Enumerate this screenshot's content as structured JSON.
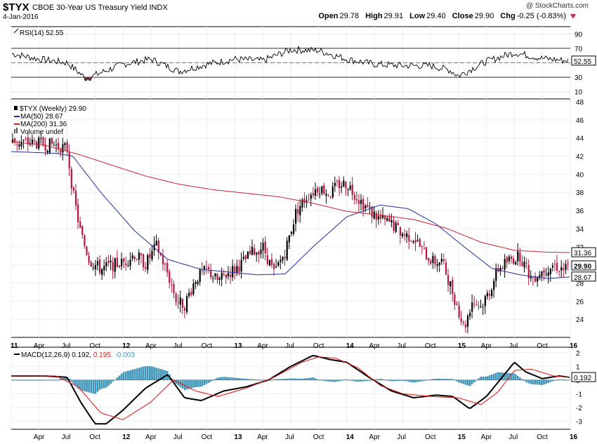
{
  "header": {
    "symbol": "$TYX",
    "description": "CBOE 30-Year US Treasury Yield INDX",
    "date": "4-Jan-2016",
    "brand": "@ StockCharts.com",
    "quote": {
      "open_label": "Open",
      "open": "29.78",
      "high_label": "High",
      "high": "29.91",
      "low_label": "Low",
      "low": "29.40",
      "close_label": "Close",
      "close": "29.90",
      "chg_label": "Chg",
      "chg": "-0.25 (-0.83%)"
    }
  },
  "colors": {
    "price_up": "#000000",
    "price_down": "#b5173e",
    "ma50": "#1f2f9a",
    "ma200": "#cc2233",
    "macd_line": "#000000",
    "signal_line": "#e02020",
    "histogram": "#3aa0c8",
    "rsi_fill_over": "#7a3c3c",
    "rsi_fill_under": "#8a3b3b"
  },
  "chart_data": [
    {
      "type": "line",
      "panel": "rsi",
      "label_text": "RSI(14) 52.55",
      "value_tag": "52.55",
      "ylim": [
        0,
        100
      ],
      "y_ticks": [
        "90",
        "70",
        "50",
        "30",
        "10"
      ],
      "reference_lines": [
        70,
        50,
        30
      ],
      "x": [
        2011.0,
        2011.25,
        2011.5,
        2011.67,
        2011.83,
        2012.0,
        2012.25,
        2012.5,
        2012.75,
        2013.0,
        2013.25,
        2013.5,
        2013.75,
        2014.0,
        2014.25,
        2014.5,
        2014.75,
        2014.92,
        2015.0,
        2015.25,
        2015.5,
        2015.75,
        2016.0
      ],
      "values": [
        63,
        55,
        50,
        28,
        38,
        48,
        55,
        38,
        48,
        55,
        53,
        68,
        67,
        55,
        48,
        46,
        46,
        40,
        32,
        52,
        64,
        56,
        52.55
      ]
    },
    {
      "type": "ohlc",
      "panel": "price",
      "title": "$TYX (Weekly) 29.90",
      "legend": [
        "MA(50) 28.67",
        "MA(200) 31.36",
        "Volume undef"
      ],
      "ylim": [
        22,
        48
      ],
      "y_ticks": [
        "48",
        "46",
        "44",
        "42",
        "40",
        "38",
        "36",
        "34",
        "32",
        "30",
        "28",
        "26",
        "24"
      ],
      "value_tags": [
        "31.36",
        "29.90",
        "28.67"
      ],
      "x_ticks": [
        "11",
        "Apr",
        "Jul",
        "Oct",
        "12",
        "Apr",
        "Jul",
        "Oct",
        "13",
        "Apr",
        "Jul",
        "Oct",
        "14",
        "Apr",
        "Jul",
        "Oct",
        "15",
        "Apr",
        "Jul",
        "Oct",
        "16"
      ],
      "x_range": [
        2011.0,
        2016.0
      ],
      "close_path": {
        "x": [
          2011.0,
          2011.2,
          2011.4,
          2011.5,
          2011.55,
          2011.62,
          2011.7,
          2011.8,
          2011.9,
          2012.0,
          2012.1,
          2012.2,
          2012.3,
          2012.4,
          2012.48,
          2012.55,
          2012.65,
          2012.75,
          2012.85,
          2012.95,
          2013.05,
          2013.15,
          2013.25,
          2013.35,
          2013.45,
          2013.55,
          2013.65,
          2013.75,
          2013.85,
          2013.92,
          2014.0,
          2014.1,
          2014.2,
          2014.3,
          2014.4,
          2014.5,
          2014.6,
          2014.7,
          2014.78,
          2014.85,
          2014.92,
          2015.0,
          2015.05,
          2015.12,
          2015.2,
          2015.28,
          2015.35,
          2015.45,
          2015.55,
          2015.65,
          2015.75,
          2015.85,
          2015.95,
          2016.0
        ],
        "values": [
          43.6,
          43.4,
          43.2,
          42.8,
          38.0,
          33.5,
          30.5,
          29.5,
          30.0,
          30.2,
          31.2,
          30.1,
          32.1,
          29.0,
          26.0,
          25.6,
          28.5,
          29.4,
          28.2,
          29.2,
          30.0,
          31.3,
          32.0,
          29.0,
          31.5,
          36.0,
          37.6,
          38.6,
          37.8,
          38.8,
          39.0,
          37.4,
          36.0,
          35.0,
          34.5,
          33.4,
          33.0,
          31.2,
          30.3,
          30.4,
          28.0,
          25.0,
          23.0,
          26.0,
          25.4,
          27.2,
          29.5,
          30.5,
          31.0,
          28.5,
          29.4,
          30.0,
          29.5,
          29.9
        ]
      },
      "series": [
        {
          "name": "MA(50)",
          "x": [
            2011.0,
            2011.4,
            2011.55,
            2011.8,
            2012.1,
            2012.4,
            2012.7,
            2012.95,
            2013.2,
            2013.45,
            2013.7,
            2014.0,
            2014.3,
            2014.55,
            2014.8,
            2015.05,
            2015.3,
            2015.55,
            2015.8,
            2016.0
          ],
          "values": [
            42.5,
            42.3,
            42.0,
            38.0,
            33.8,
            30.6,
            29.5,
            29.2,
            28.9,
            29.0,
            32.0,
            35.3,
            36.6,
            36.2,
            34.5,
            32.0,
            29.6,
            28.9,
            28.5,
            28.67
          ]
        },
        {
          "name": "MA(200)",
          "x": [
            2011.0,
            2011.3,
            2011.6,
            2011.9,
            2012.2,
            2012.5,
            2012.8,
            2013.1,
            2013.4,
            2013.7,
            2014.0,
            2014.3,
            2014.6,
            2014.9,
            2015.2,
            2015.5,
            2015.8,
            2016.0
          ],
          "values": [
            43.6,
            43.2,
            42.2,
            41.0,
            39.8,
            38.9,
            38.3,
            37.9,
            37.5,
            36.8,
            35.9,
            35.5,
            35.0,
            34.0,
            32.5,
            31.6,
            31.4,
            31.36
          ]
        }
      ]
    },
    {
      "type": "line",
      "panel": "macd",
      "label_parts": [
        "MACD(12,26,9)",
        "0.192",
        "0.195",
        "-0.003"
      ],
      "value_tag": "0.192",
      "ylim": [
        -3.6,
        2.4
      ],
      "y_ticks": [
        "2",
        "1",
        "0",
        "-1",
        "-2",
        "-3"
      ],
      "x_ticks": [
        "Apr",
        "Jul",
        "Oct",
        "12",
        "Apr",
        "Jul",
        "Oct",
        "13",
        "Apr",
        "Jul",
        "Oct",
        "14",
        "Apr",
        "Jul",
        "Oct",
        "15",
        "Apr",
        "Jul",
        "Oct",
        "16"
      ],
      "series": [
        {
          "name": "MACD(12,26,9)",
          "x": [
            2011.0,
            2011.3,
            2011.5,
            2011.62,
            2011.75,
            2011.85,
            2012.0,
            2012.2,
            2012.4,
            2012.55,
            2012.7,
            2012.9,
            2013.1,
            2013.3,
            2013.5,
            2013.7,
            2013.85,
            2014.0,
            2014.2,
            2014.4,
            2014.6,
            2014.8,
            2014.95,
            2015.1,
            2015.25,
            2015.4,
            2015.5,
            2015.6,
            2015.75,
            2015.9,
            2016.0
          ],
          "values": [
            0.3,
            0.3,
            0.2,
            -1.6,
            -3.2,
            -3.2,
            -2.2,
            -0.6,
            0.4,
            -1.3,
            -1.5,
            -0.8,
            -0.5,
            0.0,
            1.0,
            1.8,
            1.5,
            1.3,
            0.2,
            -0.8,
            -1.3,
            -1.1,
            -1.2,
            -2.1,
            -1.2,
            0.3,
            1.3,
            0.6,
            0.1,
            0.3,
            0.19
          ]
        },
        {
          "name": "signal",
          "x": [
            2011.0,
            2011.4,
            2011.6,
            2011.8,
            2012.0,
            2012.25,
            2012.45,
            2012.65,
            2012.85,
            2013.1,
            2013.35,
            2013.6,
            2013.75,
            2013.9,
            2014.1,
            2014.3,
            2014.5,
            2014.75,
            2015.0,
            2015.2,
            2015.35,
            2015.5,
            2015.65,
            2015.85,
            2016.0
          ],
          "values": [
            0.3,
            0.3,
            -0.5,
            -2.4,
            -2.9,
            -1.6,
            0.0,
            -0.8,
            -1.2,
            -0.6,
            0.2,
            1.3,
            1.7,
            1.6,
            0.9,
            -0.4,
            -1.0,
            -1.2,
            -1.3,
            -1.8,
            -0.9,
            0.7,
            0.8,
            0.3,
            0.195
          ]
        }
      ]
    }
  ]
}
